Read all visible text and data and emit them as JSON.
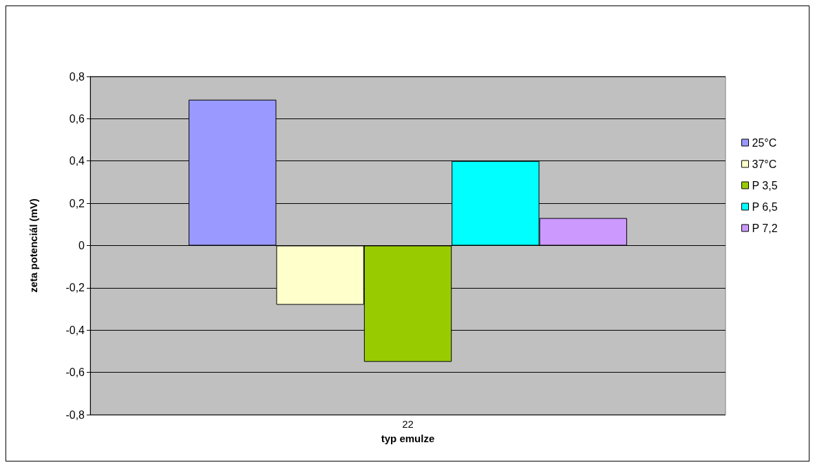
{
  "chart_data": {
    "type": "bar",
    "xlabel": "typ emulze",
    "ylabel": "zeta potenciál (mV)",
    "categories": [
      "22"
    ],
    "series": [
      {
        "name": "25°C",
        "color": "#9999ff",
        "values": [
          0.69
        ]
      },
      {
        "name": "37°C",
        "color": "#ffffcc",
        "values": [
          -0.28
        ]
      },
      {
        "name": "P 3,5",
        "color": "#99cc00",
        "values": [
          -0.55
        ]
      },
      {
        "name": "P 6,5",
        "color": "#00ffff",
        "values": [
          0.4
        ]
      },
      {
        "name": "P 7,2",
        "color": "#cc99ff",
        "values": [
          0.13
        ]
      }
    ],
    "ylim": [
      -0.8,
      0.8
    ],
    "yticks": [
      {
        "value": -0.8,
        "label": "-0,8"
      },
      {
        "value": -0.6,
        "label": "-0,6"
      },
      {
        "value": -0.4,
        "label": "-0,4"
      },
      {
        "value": -0.2,
        "label": "-0,2"
      },
      0,
      {
        "value": 0.2,
        "label": "0,2"
      },
      {
        "value": 0.4,
        "label": "0,4"
      },
      {
        "value": 0.6,
        "label": "0,6"
      },
      {
        "value": 0.8,
        "label": "0,8"
      }
    ],
    "grid": "y",
    "legend": "right"
  }
}
